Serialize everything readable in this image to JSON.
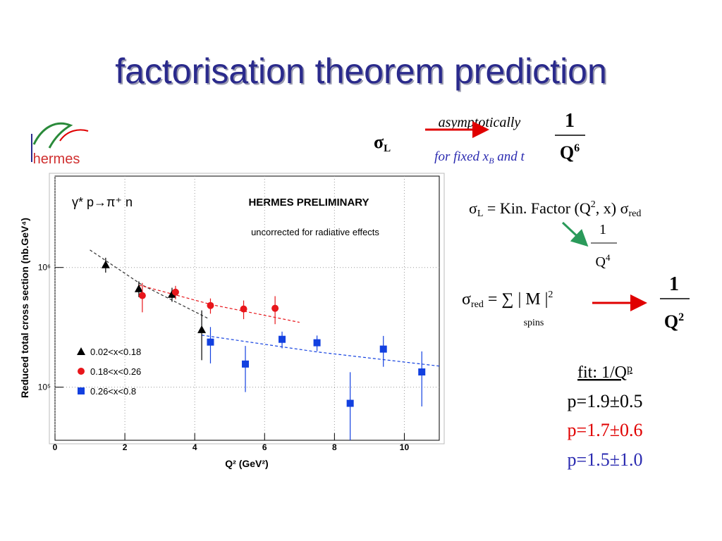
{
  "slide": {
    "title": "factorisation theorem prediction",
    "logo": "hermes",
    "sigma": "σ",
    "sub_l": "L",
    "asymptotically": "asymptotically",
    "for_fixed": "for fixed x",
    "sub_b": "B",
    "and_t": " and t",
    "one": "1",
    "q": "Q",
    "sup_6": "6",
    "eq2_mid": " = Kin. Factor  (Q",
    "sup_2": "2",
    "eq2_end": ", x)  σ",
    "sub_red": "red",
    "sup_4": "4",
    "eq3_mid": " = ∑ | M |",
    "spins": "spins",
    "fit": "fit: 1/Q",
    "sup_p": "p",
    "fit_results": [
      "p=1.9±0.5",
      "p=1.7±0.6",
      "p=1.5±1.0"
    ]
  },
  "chart_data": {
    "type": "scatter",
    "title": "HERMES PRELIMINARY",
    "annotation": "uncorrected for radiative effects",
    "reaction": "γ* p→π⁺ n",
    "x_label": "Q² (GeV²)",
    "y_label": "Reduced total cross section (nb.GeV⁴)",
    "log_y": true,
    "grid": true,
    "legend": "lower-left",
    "xlim": [
      0,
      11
    ],
    "xticks": [
      0,
      2,
      4,
      6,
      8,
      10
    ],
    "ylim": [
      36000,
      5800000
    ],
    "yticks": [
      {
        "value": 100000,
        "label": "10⁵"
      },
      {
        "value": 1000000,
        "label": "10⁶"
      }
    ],
    "series": [
      {
        "name": "0.02<x<0.18",
        "color": "#000000",
        "marker": "triangle",
        "x": [
          1.45,
          2.4,
          3.35,
          4.2
        ],
        "values": [
          1056000,
          666000,
          597000,
          303000
        ],
        "errors": [
          150000,
          100000,
          80000,
          135000
        ]
      },
      {
        "name": "0.18<x<0.26",
        "color": "#e8161b",
        "marker": "circle",
        "x": [
          2.5,
          3.45,
          4.45,
          5.4,
          6.3
        ],
        "values": [
          582000,
          622000,
          481000,
          450000,
          456000
        ],
        "errors": [
          160000,
          80000,
          70000,
          80000,
          120000
        ]
      },
      {
        "name": "0.26<x<0.8",
        "color": "#1240e0",
        "marker": "square",
        "x": [
          4.45,
          5.45,
          6.5,
          7.5,
          8.45,
          9.4,
          10.5
        ],
        "values": [
          238000,
          156000,
          251000,
          235000,
          73300,
          208000,
          134000
        ],
        "errors": [
          80000,
          65000,
          40000,
          35000,
          60000,
          60000,
          65000
        ]
      }
    ],
    "fits": [
      {
        "color": "#333333",
        "x": [
          1,
          2.5,
          4.4
        ],
        "values": [
          1400000,
          713000,
          373000
        ]
      },
      {
        "color": "#e8161b",
        "x": [
          2.4,
          4.5,
          7
        ],
        "values": [
          713000,
          488000,
          348000
        ]
      },
      {
        "color": "#1240e0",
        "x": [
          4.2,
          7.5,
          11
        ],
        "values": [
          272000,
          197000,
          150000
        ]
      }
    ]
  }
}
